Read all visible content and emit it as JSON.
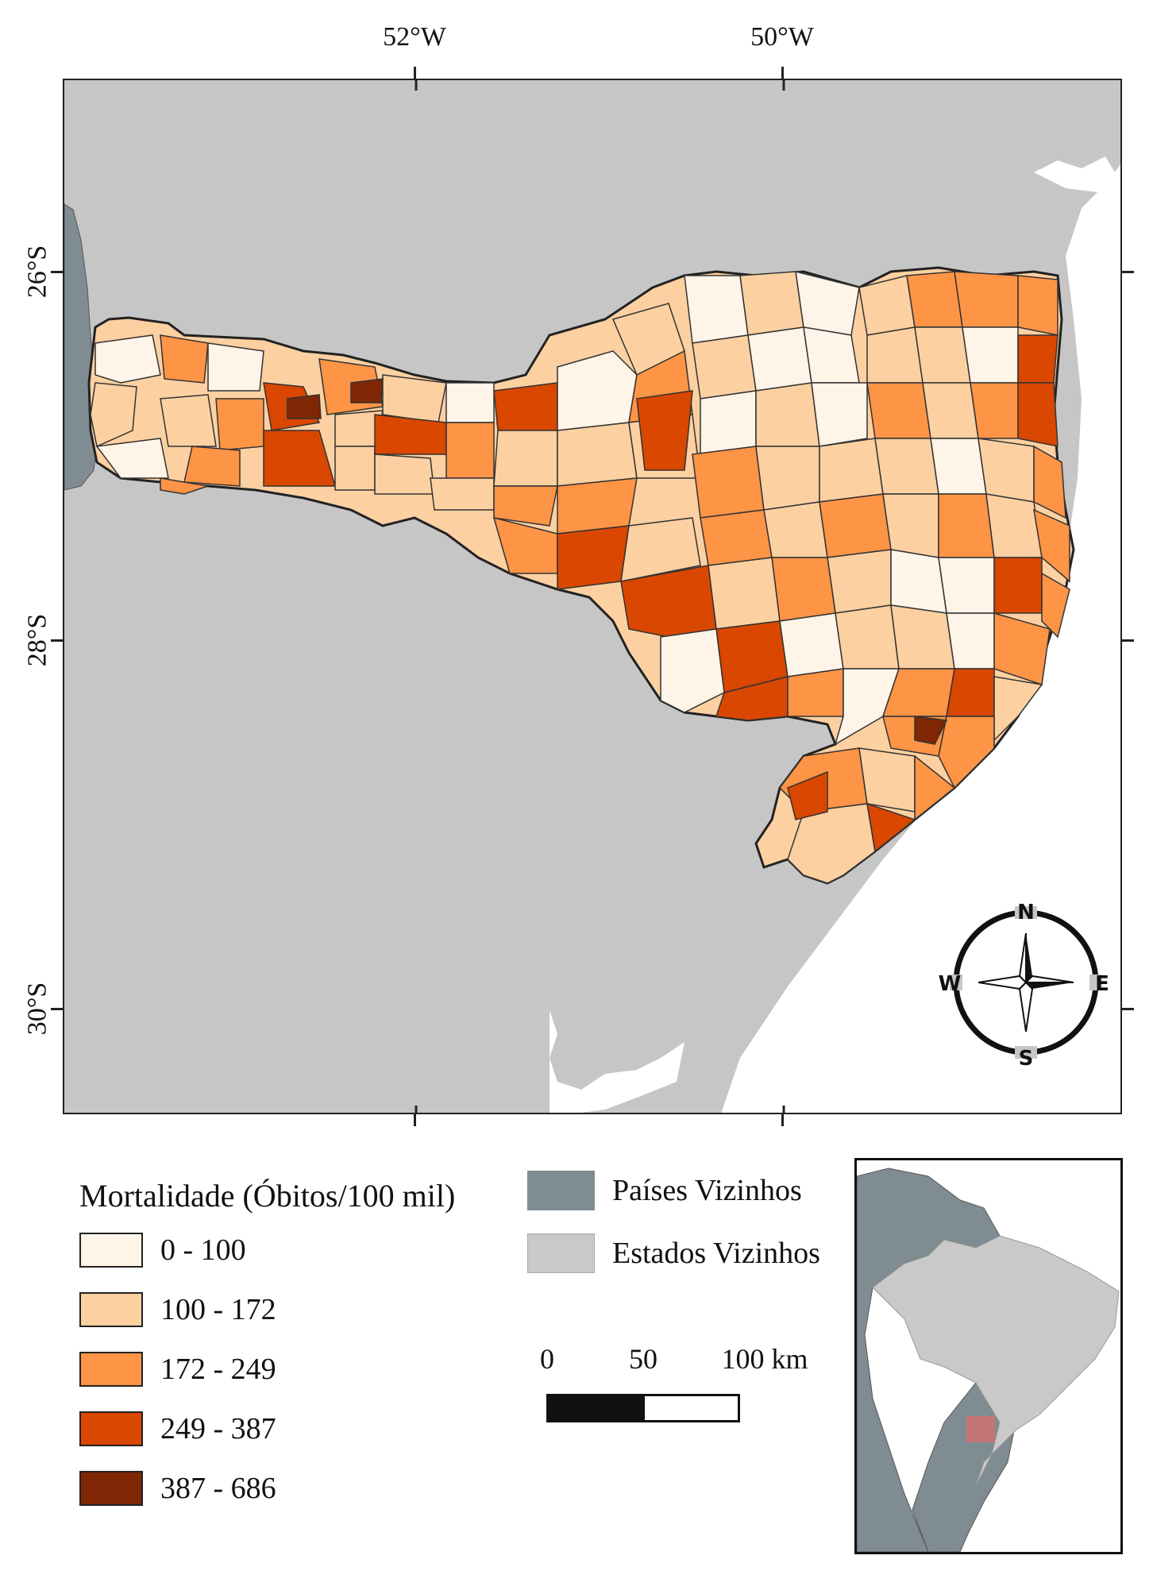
{
  "map": {
    "top_axis_labels": [
      "52°W",
      "50°W"
    ],
    "left_axis_labels": [
      "26°S",
      "28°S",
      "30°S"
    ]
  },
  "compass": {
    "n": "N",
    "s": "S",
    "e": "E",
    "w": "W"
  },
  "legend": {
    "title": "Mortalidade (Óbitos/100 mil)",
    "classes": [
      {
        "label": "0 - 100",
        "color": "#fef4e8"
      },
      {
        "label": "100 - 172",
        "color": "#fdd0a2"
      },
      {
        "label": "172 - 249",
        "color": "#fd9446"
      },
      {
        "label": "249 - 387",
        "color": "#d94701"
      },
      {
        "label": "387 - 686",
        "color": "#7f2704"
      }
    ]
  },
  "reference": {
    "neighbor_countries": {
      "label": "Países Vizinhos",
      "color": "#7f8c92"
    },
    "neighbor_states": {
      "label": "Estados Vizinhos",
      "color": "#c9c9c9"
    }
  },
  "scale_bar": {
    "labels": [
      "0",
      "50",
      "100 km"
    ]
  }
}
